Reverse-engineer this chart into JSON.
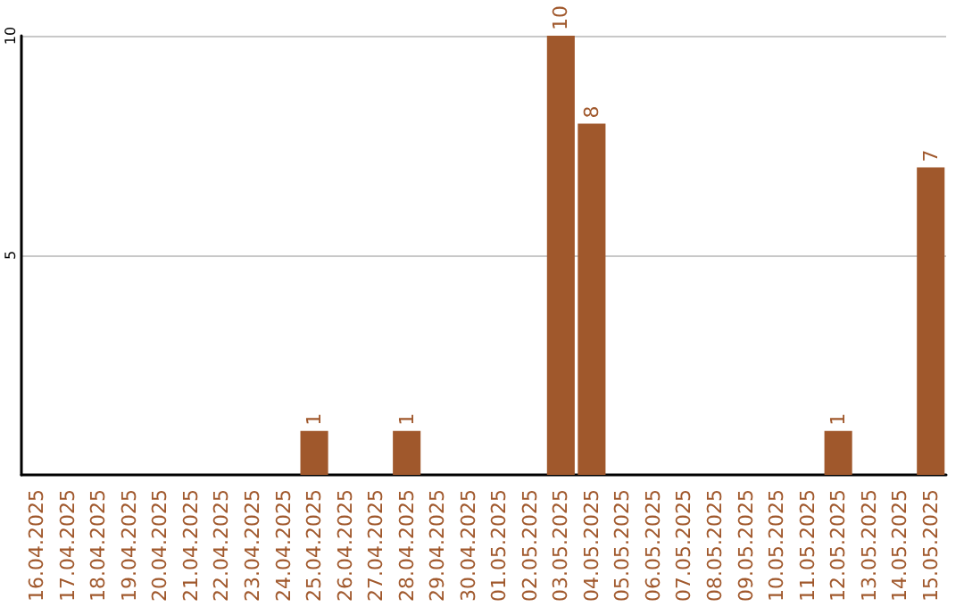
{
  "chart_data": {
    "type": "bar",
    "categories": [
      "16.04.2025",
      "17.04.2025",
      "18.04.2025",
      "19.04.2025",
      "20.04.2025",
      "21.04.2025",
      "22.04.2025",
      "23.04.2025",
      "24.04.2025",
      "25.04.2025",
      "26.04.2025",
      "27.04.2025",
      "28.04.2025",
      "29.04.2025",
      "30.04.2025",
      "01.05.2025",
      "02.05.2025",
      "03.05.2025",
      "04.05.2025",
      "05.05.2025",
      "06.05.2025",
      "07.05.2025",
      "08.05.2025",
      "09.05.2025",
      "10.05.2025",
      "11.05.2025",
      "12.05.2025",
      "13.05.2025",
      "14.05.2025",
      "15.05.2025"
    ],
    "values": [
      0,
      0,
      0,
      0,
      0,
      0,
      0,
      0,
      0,
      1,
      0,
      0,
      1,
      0,
      0,
      0,
      0,
      10,
      8,
      0,
      0,
      0,
      0,
      0,
      0,
      0,
      1,
      0,
      0,
      7
    ],
    "value_labels": [
      null,
      null,
      null,
      null,
      null,
      null,
      null,
      null,
      null,
      "1",
      null,
      null,
      "1",
      null,
      null,
      null,
      null,
      "10",
      "8",
      null,
      null,
      null,
      null,
      null,
      null,
      null,
      "1",
      null,
      null,
      "7"
    ],
    "color": "#a0582c",
    "ylim": [
      0,
      10
    ],
    "yticks": [
      5,
      10
    ],
    "grid": "y"
  }
}
